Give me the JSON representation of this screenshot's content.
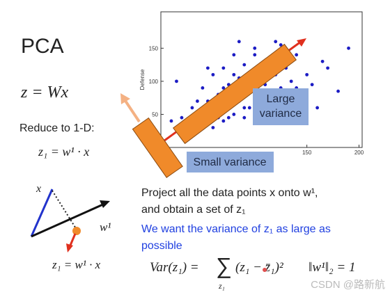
{
  "slide": {
    "title": "PCA",
    "equation": "z = Wx",
    "reduce": "Reduce to 1-D:",
    "projection": "z₁ = w¹ · x",
    "diagram": {
      "x_label": "x",
      "w_label": "w¹",
      "z_label": "z₁ = w¹ · x"
    },
    "text_line1": "Project all the data points x onto w¹,",
    "text_line2": "and obtain a set of z₁",
    "blue_line1": "We want the variance of z₁ as large as",
    "blue_line2": "possible",
    "formula": {
      "lhs": "Var(z₁) =",
      "sum": "∑",
      "sum_index": "z₁",
      "term": "(z₁ − z̄₁)²",
      "norm": "‖w¹‖₂ = 1"
    },
    "large_variance": [
      "Large",
      "variance"
    ],
    "small_variance": "Small variance",
    "watermark": "CSDN @路新航"
  },
  "chart_data": {
    "type": "scatter",
    "y_label": "Defense",
    "xlim": [
      10,
      203
    ],
    "ylim": [
      0,
      205
    ],
    "xticks": [
      150,
      200
    ],
    "yticks": [
      50,
      100,
      150
    ],
    "series": [
      {
        "color": "#1c1cc4",
        "x": [
          20,
          25,
          30,
          35,
          40,
          45,
          50,
          50,
          55,
          55,
          60,
          60,
          65,
          65,
          70,
          70,
          70,
          75,
          75,
          80,
          80,
          80,
          85,
          85,
          90,
          90,
          90,
          95,
          95,
          100,
          100,
          100,
          105,
          105,
          110,
          110,
          115,
          115,
          120,
          120,
          125,
          125,
          130,
          130,
          135,
          140,
          140,
          145,
          150,
          155,
          160,
          165,
          170,
          180,
          190,
          60,
          70,
          80,
          90,
          100,
          110,
          45,
          55,
          120,
          130,
          75,
          85
        ],
        "values": [
          40,
          100,
          45,
          30,
          60,
          40,
          50,
          90,
          35,
          70,
          55,
          110,
          45,
          80,
          40,
          65,
          120,
          60,
          95,
          50,
          85,
          140,
          70,
          105,
          45,
          80,
          125,
          60,
          100,
          55,
          90,
          150,
          75,
          115,
          60,
          95,
          85,
          130,
          70,
          110,
          90,
          155,
          80,
          120,
          100,
          90,
          140,
          75,
          110,
          95,
          60,
          130,
          120,
          85,
          150,
          30,
          90,
          110,
          60,
          140,
          70,
          70,
          120,
          160,
          55,
          45,
          160
        ]
      }
    ]
  }
}
